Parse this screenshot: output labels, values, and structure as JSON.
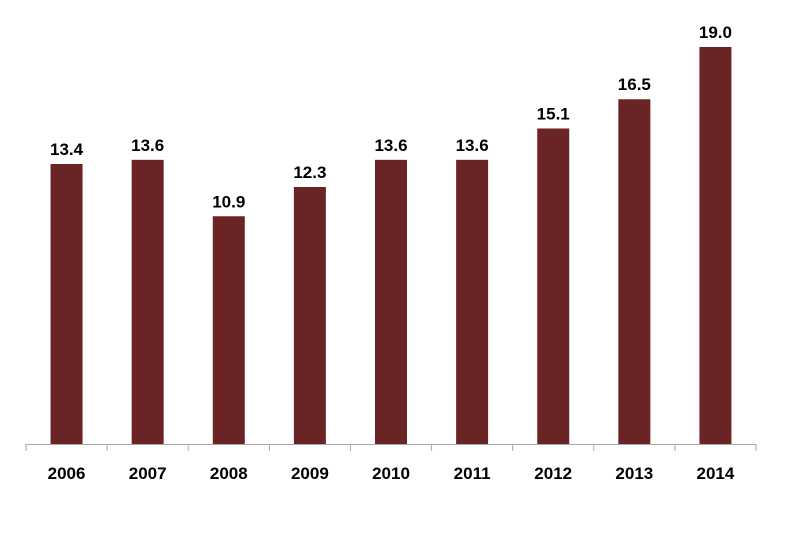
{
  "chart_data": {
    "type": "bar",
    "categories": [
      "2006",
      "2007",
      "2008",
      "2009",
      "2010",
      "2011",
      "2012",
      "2013",
      "2014"
    ],
    "values": [
      13.4,
      13.6,
      10.9,
      12.3,
      13.6,
      13.6,
      15.1,
      16.5,
      19.0
    ],
    "data_labels": [
      "13.4",
      "13.6",
      "10.9",
      "12.3",
      "13.6",
      "13.6",
      "15.1",
      "16.5",
      "19.0"
    ],
    "title": "",
    "xlabel": "",
    "ylabel": "",
    "ylim": [
      0,
      19.0
    ],
    "grid": false,
    "legend": "none",
    "bar_color": "#6b2426",
    "axis_color": "#a6a6a6"
  }
}
